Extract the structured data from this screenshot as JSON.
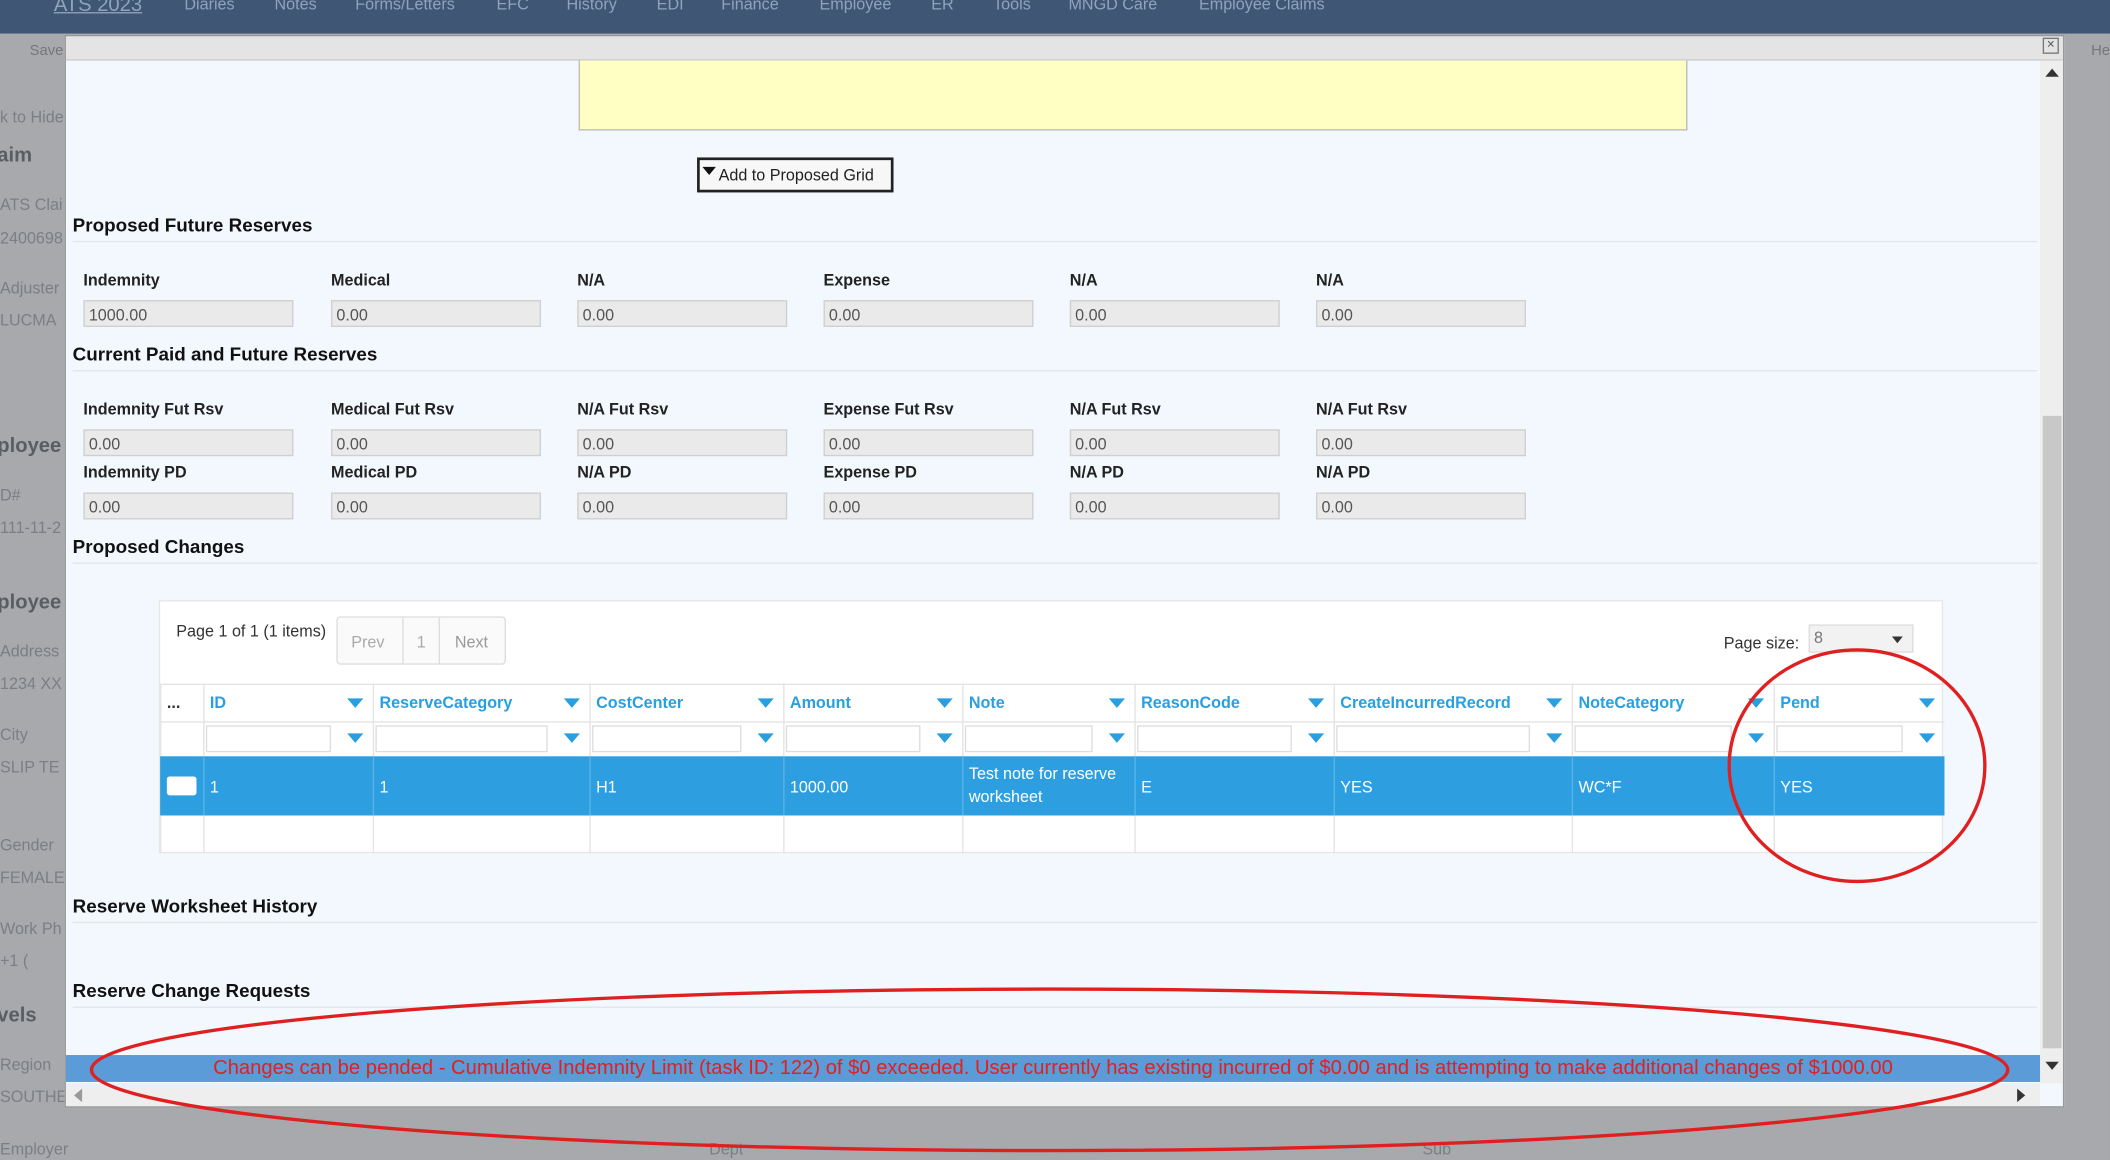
{
  "app": {
    "nav": [
      "ATS 2023",
      "Diaries",
      "Notes",
      "Forms/Letters",
      "EFC",
      "History",
      "EDI",
      "Finance",
      "Employee",
      "ER",
      "Tools",
      "MNGD Care",
      "Employee Claims"
    ],
    "toolbar": [
      "Save",
      "He"
    ],
    "side_labels": [
      "k to Hide",
      "aim",
      "ATS Clai",
      "2400698",
      "Adjuster",
      "LUCMA",
      "ployee",
      "D#",
      "111-11-2",
      "ployee",
      "Address",
      "1234 XX",
      "City",
      "SLIP TE",
      "Gender",
      "FEMALE",
      "Work Ph",
      "+1 (",
      "vels",
      "Region",
      "SOUTHE",
      "Employer"
    ],
    "bottom_labels": [
      "Dept",
      "Sub"
    ]
  },
  "modal": {
    "button": "Add to Proposed Grid",
    "sections": [
      {
        "title": "Proposed Future Reserves",
        "rows": [
          [
            {
              "label": "Indemnity",
              "value": "1000.00"
            },
            {
              "label": "Medical",
              "value": "0.00"
            },
            {
              "label": "N/A",
              "value": "0.00"
            },
            {
              "label": "Expense",
              "value": "0.00"
            },
            {
              "label": "N/A",
              "value": "0.00"
            },
            {
              "label": "N/A",
              "value": "0.00"
            }
          ]
        ]
      },
      {
        "title": "Current Paid and Future Reserves",
        "rows": [
          [
            {
              "label": "Indemnity Fut Rsv",
              "value": "0.00"
            },
            {
              "label": "Medical Fut Rsv",
              "value": "0.00"
            },
            {
              "label": "N/A Fut Rsv",
              "value": "0.00"
            },
            {
              "label": "Expense Fut Rsv",
              "value": "0.00"
            },
            {
              "label": "N/A Fut Rsv",
              "value": "0.00"
            },
            {
              "label": "N/A Fut Rsv",
              "value": "0.00"
            }
          ],
          [
            {
              "label": "Indemnity PD",
              "value": "0.00"
            },
            {
              "label": "Medical PD",
              "value": "0.00"
            },
            {
              "label": "N/A PD",
              "value": "0.00"
            },
            {
              "label": "Expense PD",
              "value": "0.00"
            },
            {
              "label": "N/A PD",
              "value": "0.00"
            },
            {
              "label": "N/A PD",
              "value": "0.00"
            }
          ]
        ]
      },
      {
        "title": "Proposed Changes"
      },
      {
        "title": "Reserve Worksheet History"
      },
      {
        "title": "Reserve Change Requests"
      }
    ],
    "grid": {
      "pager": {
        "summary": "Page 1 of 1 (1 items)",
        "prev": "Prev",
        "page": "1",
        "next": "Next",
        "page_size_label": "Page size:",
        "page_size": "8"
      },
      "columns": [
        "...",
        "ID",
        "ReserveCategory",
        "CostCenter",
        "Amount",
        "Note",
        "ReasonCode",
        "CreateIncurredRecord",
        "NoteCategory",
        "Pend"
      ],
      "rows": [
        [
          "1",
          "1",
          "H1",
          "1000.00",
          "Test note for reserve worksheet",
          "E",
          "YES",
          "WC*F",
          "YES"
        ]
      ]
    },
    "message": "Changes can be pended - Cumulative Indemnity Limit (task ID: 122) of $0 exceeded. User currently has existing incurred of $0.00 and is attempting to make additional changes of $1000.00"
  }
}
